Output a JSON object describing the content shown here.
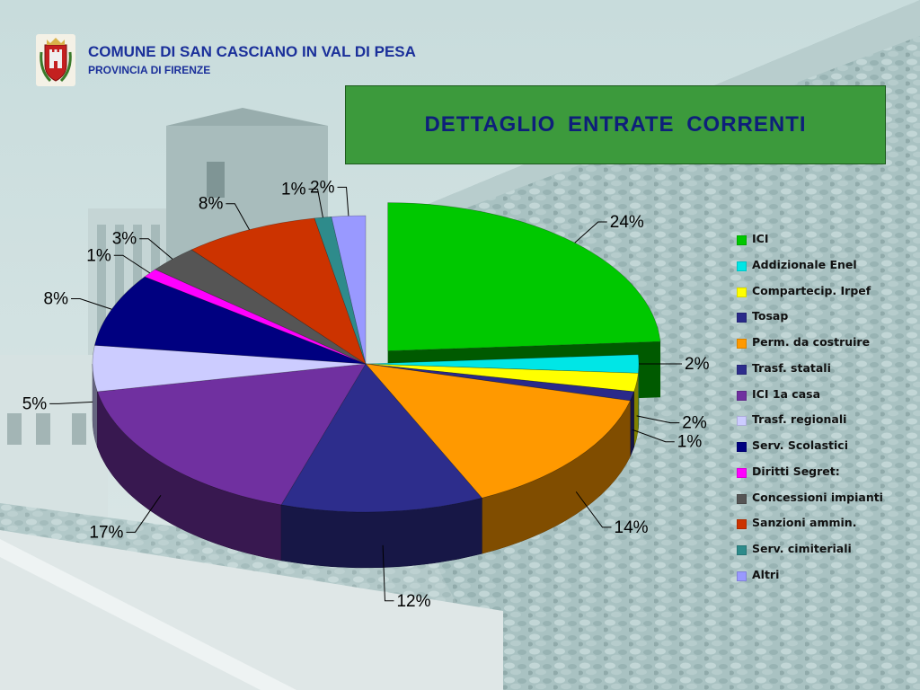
{
  "header": {
    "title": "COMUNE DI SAN CASCIANO IN VAL DI PESA",
    "subtitle": "PROVINCIA DI FIRENZE"
  },
  "chart_data": {
    "type": "pie",
    "title": "DETTAGLIO  ENTRATE  CORRENTI",
    "legend_position": "right",
    "exploded_slice": "ICI",
    "categories": [
      "ICI",
      "Addizionale Enel",
      "Compartecip. Irpef",
      "Tosap",
      "Perm. da costruire",
      "Trasf. statali",
      "ICI 1a casa",
      "Trasf. regionali",
      "Serv. Scolastici",
      "Diritti Segret:",
      "Concessioni impianti",
      "Sanzioni ammin.",
      "Serv. cimiteriali",
      "Altri"
    ],
    "values": [
      24,
      2,
      2,
      1,
      14,
      12,
      17,
      5,
      8,
      1,
      3,
      8,
      1,
      2
    ],
    "labels": [
      "24%",
      "2%",
      "2%",
      "1%",
      "14%",
      "12%",
      "17%",
      "5%",
      "8%",
      "1%",
      "3%",
      "8%",
      "1%",
      "2%"
    ],
    "colors": [
      "#00c800",
      "#00e6e6",
      "#ffff00",
      "#2a2a8a",
      "#ff9900",
      "#2d2d8c",
      "#7030a0",
      "#ccccff",
      "#000080",
      "#ff00ff",
      "#555555",
      "#cc3300",
      "#2e8b8b",
      "#9999ff"
    ]
  }
}
